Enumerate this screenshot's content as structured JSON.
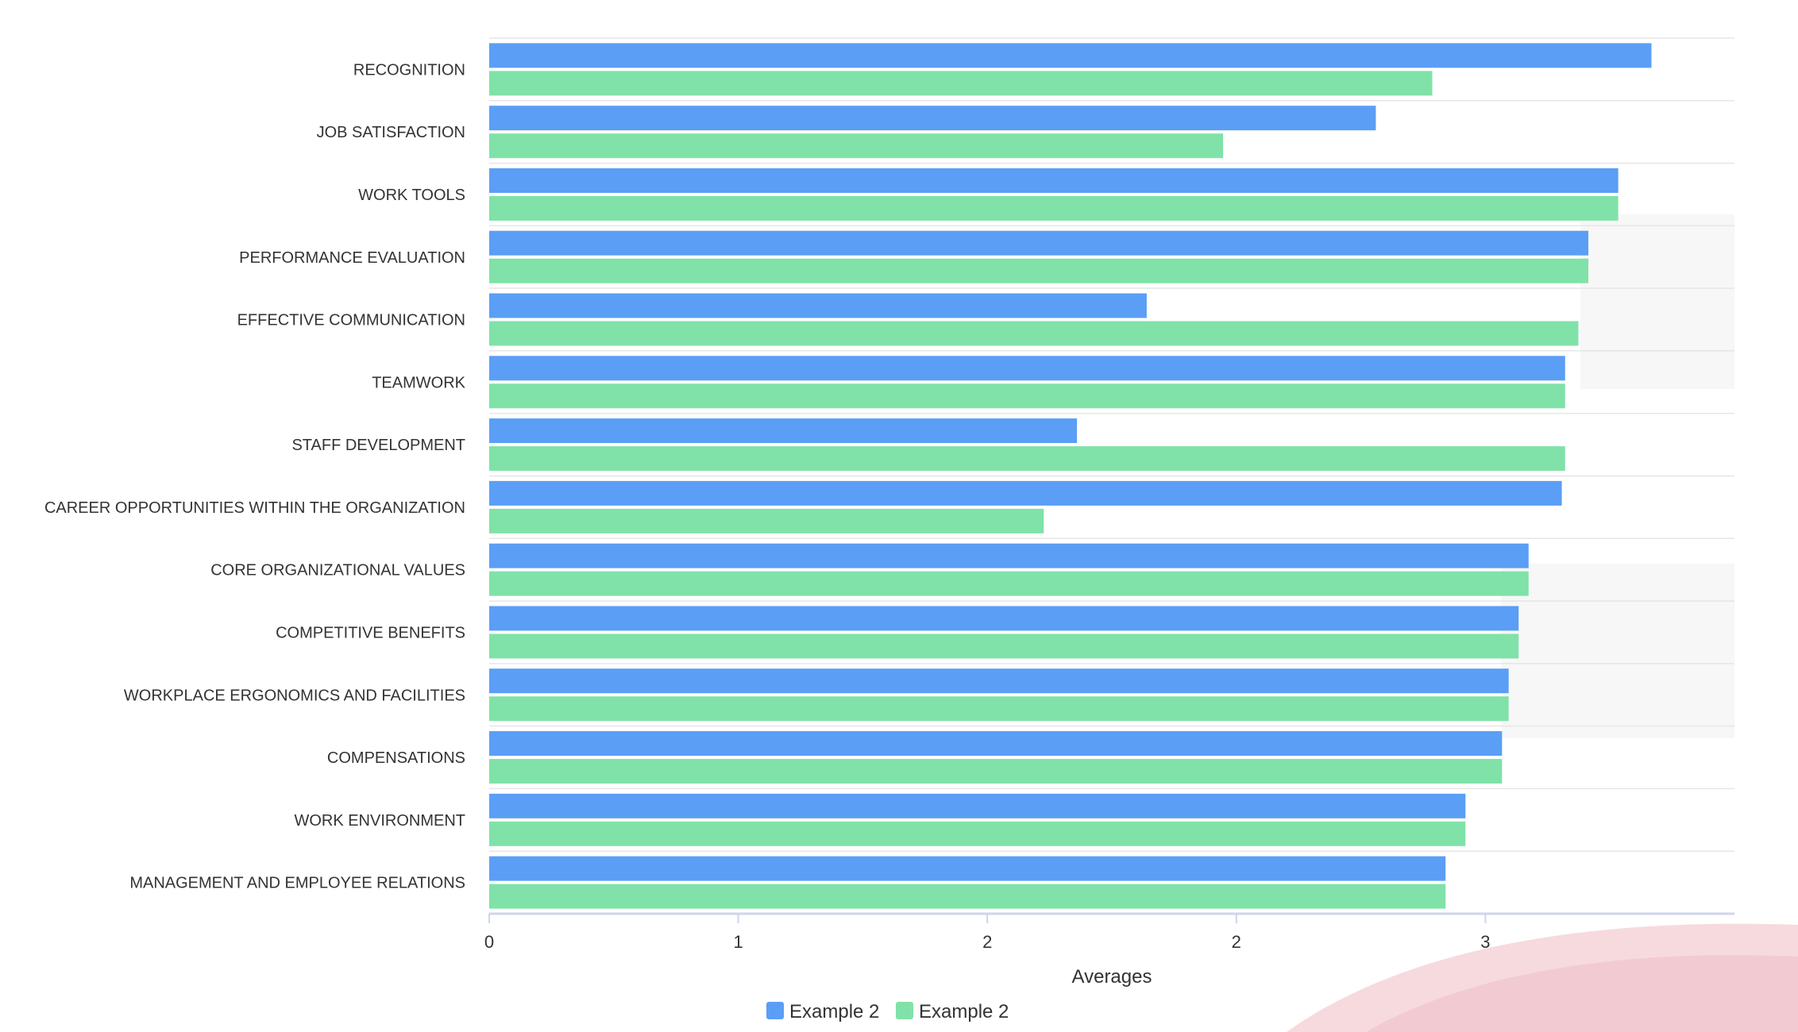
{
  "colors": {
    "series_a": "#5b9ef5",
    "series_b": "#80e2a8",
    "gridline": "#e6e6e6",
    "axis": "#ccd6eb",
    "band": "#f7f7f7",
    "decor": "#f3cdd3"
  },
  "chart_data": {
    "type": "bar",
    "orientation": "horizontal",
    "categories": [
      "RECOGNITION",
      "JOB SATISFACTION",
      "WORK TOOLS",
      "PERFORMANCE EVALUATION",
      "EFFECTIVE COMMUNICATION",
      "TEAMWORK",
      "STAFF DEVELOPMENT",
      "CAREER OPPORTUNITIES WITHIN THE ORGANIZATION",
      "CORE ORGANIZATIONAL VALUES",
      "COMPETITIVE BENEFITS",
      "WORKPLACE ERGONOMICS AND FACILITIES",
      "COMPENSATIONS",
      "WORK ENVIRONMENT",
      "MANAGEMENT AND EMPLOYEE RELATIONS"
    ],
    "series": [
      {
        "name": "Example 2",
        "values": [
          3.5,
          2.67,
          3.4,
          3.31,
          1.98,
          3.24,
          1.77,
          3.23,
          3.13,
          3.1,
          3.07,
          3.05,
          2.94,
          2.88
        ]
      },
      {
        "name": "Example 2",
        "values": [
          2.84,
          2.21,
          3.4,
          3.31,
          3.28,
          3.24,
          3.24,
          1.67,
          3.13,
          3.1,
          3.07,
          3.05,
          2.94,
          2.88
        ]
      }
    ],
    "xlabel": "Averages",
    "ylabel": "",
    "xlim": [
      0,
      3.75
    ],
    "x_ticks": [
      0,
      0.75,
      1.5,
      2.25,
      3.0
    ],
    "x_tick_labels": [
      "0",
      "1",
      "2",
      "2",
      "3"
    ],
    "grid": true,
    "legend_position": "bottom-center"
  }
}
